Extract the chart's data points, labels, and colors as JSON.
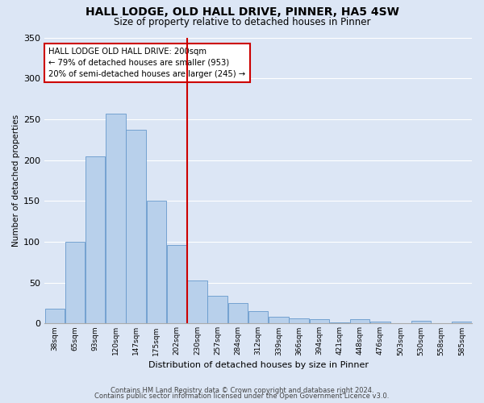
{
  "title": "HALL LODGE, OLD HALL DRIVE, PINNER, HA5 4SW",
  "subtitle": "Size of property relative to detached houses in Pinner",
  "xlabel": "Distribution of detached houses by size in Pinner",
  "ylabel": "Number of detached properties",
  "bar_labels": [
    "38sqm",
    "65sqm",
    "93sqm",
    "120sqm",
    "147sqm",
    "175sqm",
    "202sqm",
    "230sqm",
    "257sqm",
    "284sqm",
    "312sqm",
    "339sqm",
    "366sqm",
    "394sqm",
    "421sqm",
    "448sqm",
    "476sqm",
    "503sqm",
    "530sqm",
    "558sqm",
    "585sqm"
  ],
  "bar_values": [
    18,
    100,
    205,
    257,
    237,
    150,
    96,
    53,
    34,
    25,
    15,
    8,
    6,
    5,
    1,
    5,
    2,
    0,
    3,
    0,
    2
  ],
  "bar_color": "#b8d0eb",
  "bar_edge_color": "#6699cc",
  "vline_index": 6.5,
  "vline_color": "#cc0000",
  "annotation_text": "HALL LODGE OLD HALL DRIVE: 200sqm\n← 79% of detached houses are smaller (953)\n20% of semi-detached houses are larger (245) →",
  "annotation_box_color": "white",
  "annotation_box_edge_color": "#cc0000",
  "ylim": [
    0,
    350
  ],
  "yticks": [
    0,
    50,
    100,
    150,
    200,
    250,
    300,
    350
  ],
  "bg_color": "#dce6f5",
  "plot_bg_color": "#dce6f5",
  "grid_color": "white",
  "footer_line1": "Contains HM Land Registry data © Crown copyright and database right 2024.",
  "footer_line2": "Contains public sector information licensed under the Open Government Licence v3.0."
}
